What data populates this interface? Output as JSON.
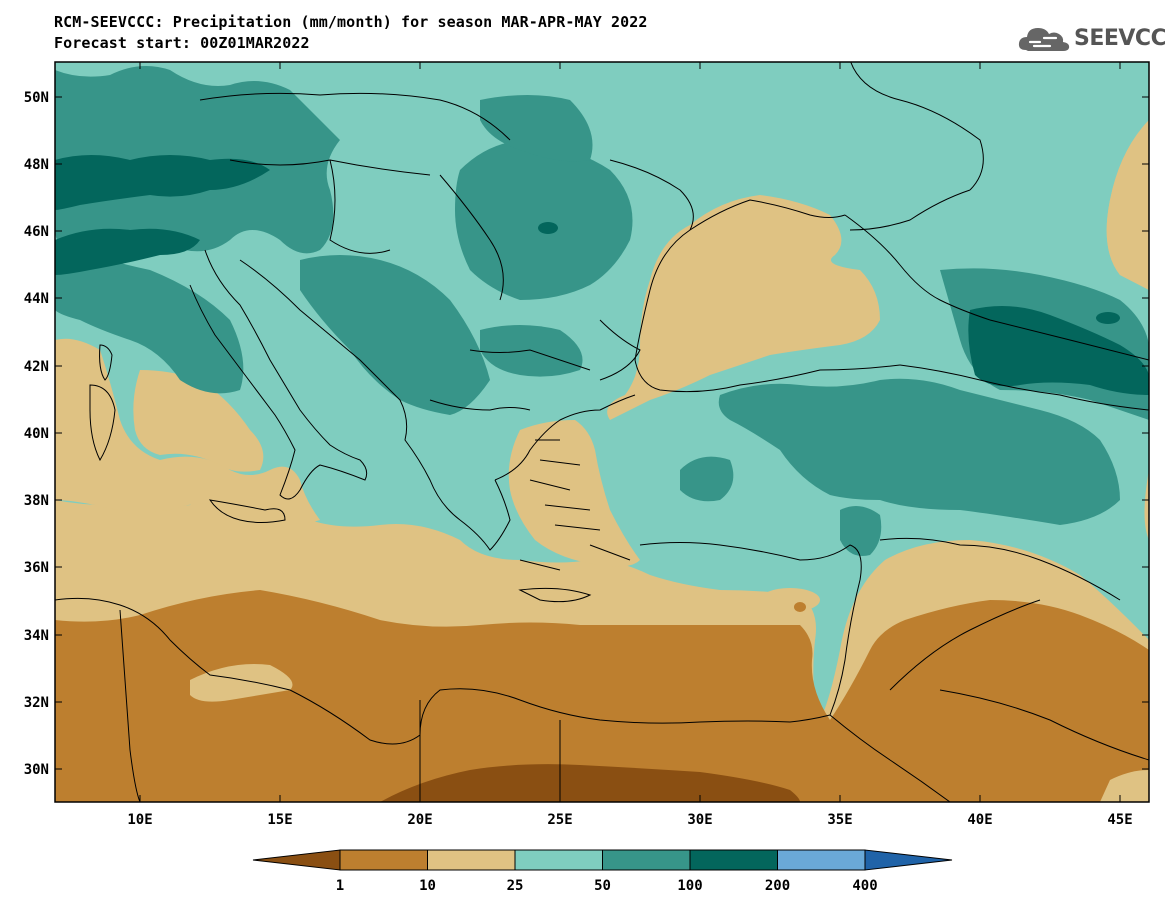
{
  "title": {
    "line1": "RCM-SEEVCCC: Precipitation (mm/month) for season MAR-APR-MAY 2022",
    "line2": "Forecast start: 00Z01MAR2022"
  },
  "logo": {
    "text": "SEEVCCC",
    "icon": "cloud-icon"
  },
  "map": {
    "lat_labels": [
      "50N",
      "48N",
      "46N",
      "44N",
      "42N",
      "40N",
      "38N",
      "36N",
      "34N",
      "32N",
      "30N"
    ],
    "lon_labels": [
      "10E",
      "15E",
      "20E",
      "25E",
      "30E",
      "35E",
      "40E",
      "45E"
    ]
  },
  "colorbar": {
    "ticks": [
      "1",
      "10",
      "25",
      "50",
      "100",
      "200",
      "400"
    ],
    "colors": [
      "#8a4f12",
      "#bd7f2f",
      "#dfc283",
      "#7fcdbf",
      "#379589",
      "#03665c",
      "#6aa9d8",
      "#2063a8"
    ]
  }
}
